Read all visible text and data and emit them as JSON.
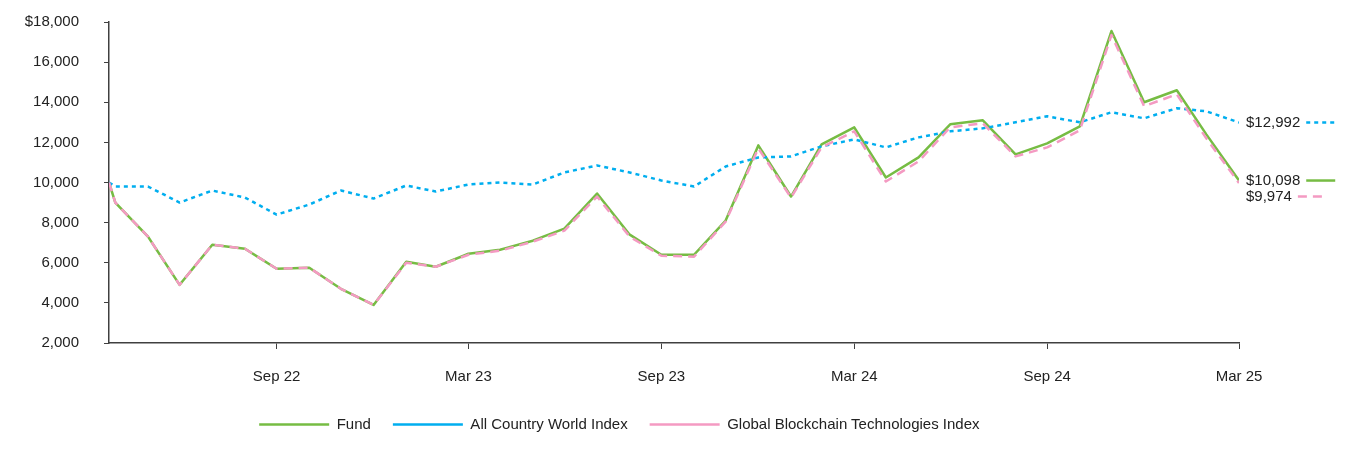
{
  "chart_data": {
    "type": "line",
    "x": [
      "2022-04-24",
      "2022-04-30",
      "2022-05-31",
      "2022-06-30",
      "2022-07-31",
      "2022-08-31",
      "2022-09-30",
      "2022-10-31",
      "2022-11-30",
      "2022-12-31",
      "2023-01-31",
      "2023-02-28",
      "2023-03-31",
      "2023-04-30",
      "2023-05-31",
      "2023-06-30",
      "2023-07-31",
      "2023-08-31",
      "2023-09-30",
      "2023-10-31",
      "2023-11-30",
      "2023-12-31",
      "2024-01-31",
      "2024-02-29",
      "2024-03-31",
      "2024-04-30",
      "2024-05-31",
      "2024-06-30",
      "2024-07-31",
      "2024-08-31",
      "2024-09-30",
      "2024-10-31",
      "2024-11-30",
      "2024-12-31",
      "2025-01-31",
      "2025-02-28",
      "2025-03-31"
    ],
    "series": [
      {
        "name": "Fund",
        "color": "#76bc43",
        "line_style": "solid",
        "values": [
          10000,
          9000,
          7300,
          4900,
          6900,
          6700,
          5700,
          5750,
          4700,
          3900,
          6050,
          5800,
          6450,
          6650,
          7100,
          7700,
          9450,
          7400,
          6400,
          6400,
          8100,
          11850,
          9300,
          11900,
          12750,
          10250,
          11250,
          12900,
          13100,
          11400,
          11950,
          12800,
          17550,
          14000,
          14600,
          12400,
          10098
        ],
        "value_labels": [
          null,
          null,
          null,
          null,
          null,
          null,
          null,
          null,
          null,
          null,
          null,
          null,
          null,
          null,
          null,
          null,
          null,
          null,
          null,
          null,
          null,
          null,
          null,
          null,
          null,
          null,
          null,
          null,
          null,
          null,
          null,
          null,
          null,
          null,
          null,
          null,
          "$10,098"
        ]
      },
      {
        "name": "All Country World Index",
        "color": "#00aeef",
        "line_style": "dotted",
        "values": [
          10000,
          9800,
          9800,
          9000,
          9600,
          9250,
          8400,
          8900,
          9600,
          9200,
          9850,
          9550,
          9900,
          10000,
          9900,
          10500,
          10850,
          10500,
          10100,
          9800,
          10800,
          11250,
          11300,
          11800,
          12150,
          11750,
          12250,
          12550,
          12700,
          13000,
          13300,
          13000,
          13500,
          13200,
          13700,
          13550,
          12992
        ],
        "value_labels": [
          null,
          null,
          null,
          null,
          null,
          null,
          null,
          null,
          null,
          null,
          null,
          null,
          null,
          null,
          null,
          null,
          null,
          null,
          null,
          null,
          null,
          null,
          null,
          null,
          null,
          null,
          null,
          null,
          null,
          null,
          null,
          null,
          null,
          null,
          null,
          null,
          "$12,992"
        ]
      },
      {
        "name": "Global Blockchain Technologies Index",
        "color": "#f49ac2",
        "line_style": "dashed",
        "values": [
          10000,
          9000,
          7300,
          4900,
          6900,
          6700,
          5700,
          5750,
          4700,
          3900,
          6000,
          5800,
          6400,
          6600,
          7050,
          7600,
          9300,
          7300,
          6350,
          6300,
          8050,
          11700,
          9250,
          11750,
          12550,
          10050,
          11050,
          12750,
          12950,
          11300,
          11750,
          12600,
          17350,
          13800,
          14400,
          12200,
          9974
        ],
        "value_labels": [
          null,
          null,
          null,
          null,
          null,
          null,
          null,
          null,
          null,
          null,
          null,
          null,
          null,
          null,
          null,
          null,
          null,
          null,
          null,
          null,
          null,
          null,
          null,
          null,
          null,
          null,
          null,
          null,
          null,
          null,
          null,
          null,
          null,
          null,
          null,
          null,
          "$9,974"
        ]
      }
    ],
    "xlim": [
      "2022-04-24",
      "2025-03-31"
    ],
    "xticks": [
      {
        "value": "2022-09-30",
        "label": "Sep 22"
      },
      {
        "value": "2023-03-31",
        "label": "Mar 23"
      },
      {
        "value": "2023-09-30",
        "label": "Sep 23"
      },
      {
        "value": "2024-03-31",
        "label": "Mar 24"
      },
      {
        "value": "2024-09-30",
        "label": "Sep 24"
      },
      {
        "value": "2025-03-31",
        "label": "Mar 25"
      }
    ],
    "ylim": [
      2000,
      18000
    ],
    "yticks": [
      {
        "value": 2000,
        "label": "2,000"
      },
      {
        "value": 4000,
        "label": "4,000"
      },
      {
        "value": 6000,
        "label": "6,000"
      },
      {
        "value": 8000,
        "label": "8,000"
      },
      {
        "value": 10000,
        "label": "10,000"
      },
      {
        "value": 12000,
        "label": "12,000"
      },
      {
        "value": 14000,
        "label": "14,000"
      },
      {
        "value": 16000,
        "label": "16,000"
      },
      {
        "value": 18000,
        "label": "$18,000"
      }
    ],
    "marker": "none",
    "legend": "bottom"
  }
}
